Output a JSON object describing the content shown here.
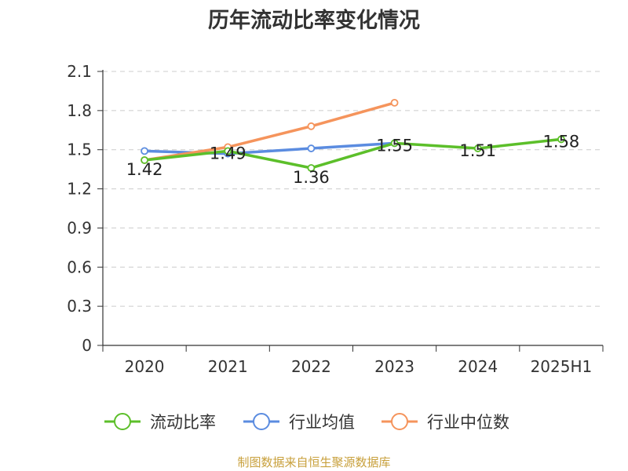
{
  "chart_data": {
    "type": "line",
    "title": "历年流动比率变化情况",
    "categories": [
      "2020",
      "2021",
      "2022",
      "2023",
      "2024",
      "2025H1"
    ],
    "y_ticks": [
      "0",
      "0.3",
      "0.6",
      "0.9",
      "1.2",
      "1.5",
      "1.8",
      "2.1"
    ],
    "ylim": [
      0,
      2.1
    ],
    "grid": true,
    "legend_position": "bottom",
    "series": [
      {
        "name": "流动比率",
        "values": [
          1.42,
          1.49,
          1.36,
          1.55,
          1.51,
          1.58
        ],
        "labels": [
          "1.42",
          "1.49",
          "1.36",
          "1.55",
          "1.51",
          "1.58"
        ],
        "color": "#5cbf2a"
      },
      {
        "name": "行业均值",
        "values": [
          1.49,
          1.47,
          1.51,
          1.55,
          null,
          null
        ],
        "color": "#5b8ce0"
      },
      {
        "name": "行业中位数",
        "values": [
          1.42,
          1.52,
          1.68,
          1.86,
          null,
          null
        ],
        "color": "#f5945c"
      }
    ]
  },
  "footer": {
    "source": "制图数据来自恒生聚源数据库"
  }
}
